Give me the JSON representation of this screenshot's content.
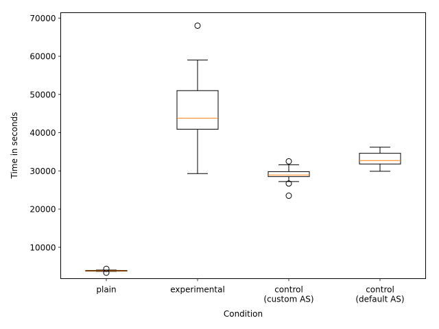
{
  "chart_data": {
    "type": "box",
    "title": "",
    "xlabel": "Condition",
    "ylabel": "Time in seconds",
    "ylim": [
      1800,
      71400
    ],
    "yticks": [
      10000,
      20000,
      30000,
      40000,
      50000,
      60000,
      70000
    ],
    "ytick_labels": [
      "10000",
      "20000",
      "30000",
      "40000",
      "50000",
      "60000",
      "70000"
    ],
    "grid": false,
    "median_color": "#ff7f0e",
    "box_color": "#000000",
    "categories": [
      {
        "label_lines": [
          "plain"
        ],
        "whisker_low": 3700,
        "q1": 3750,
        "median": 3850,
        "q3": 3950,
        "whisker_high": 4050,
        "fliers": [
          3350,
          4350
        ]
      },
      {
        "label_lines": [
          "experimental"
        ],
        "whisker_low": 29300,
        "q1": 40900,
        "median": 43800,
        "q3": 51000,
        "whisker_high": 59000,
        "fliers": [
          68000
        ]
      },
      {
        "label_lines": [
          "control",
          "(custom AS)"
        ],
        "whisker_low": 27200,
        "q1": 28500,
        "median": 28900,
        "q3": 29800,
        "whisker_high": 31600,
        "fliers": [
          32500,
          26700,
          23500
        ]
      },
      {
        "label_lines": [
          "control",
          "(default AS)"
        ],
        "whisker_low": 29900,
        "q1": 31800,
        "median": 32700,
        "q3": 34600,
        "whisker_high": 36200,
        "fliers": []
      }
    ]
  }
}
